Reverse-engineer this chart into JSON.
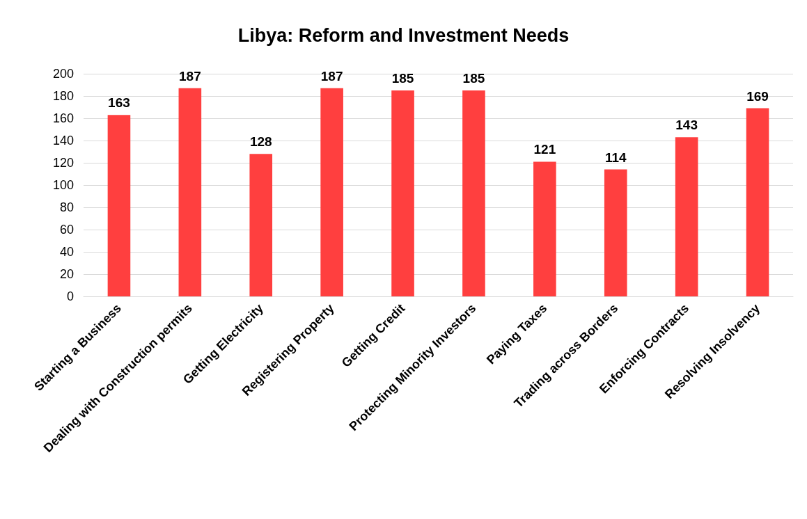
{
  "chart_data": {
    "type": "bar",
    "title": "Libya: Reform and Investment Needs",
    "categories": [
      "Starting a Business",
      "Dealing with Construction permits",
      "Getting Electricity",
      "Registering Property",
      "Getting Credit",
      "Protecting Minority Investors",
      "Paying Taxes",
      "Trading across Borders",
      "Enforcing Contracts",
      "Resolving Insolvency"
    ],
    "values": [
      163,
      187,
      128,
      187,
      185,
      185,
      121,
      114,
      143,
      169
    ],
    "color": "#ff3f3f",
    "ylim": [
      0,
      200
    ],
    "yticks": [
      0,
      20,
      40,
      60,
      80,
      100,
      120,
      140,
      160,
      180,
      200
    ],
    "grid": "y",
    "data_labels": true
  }
}
